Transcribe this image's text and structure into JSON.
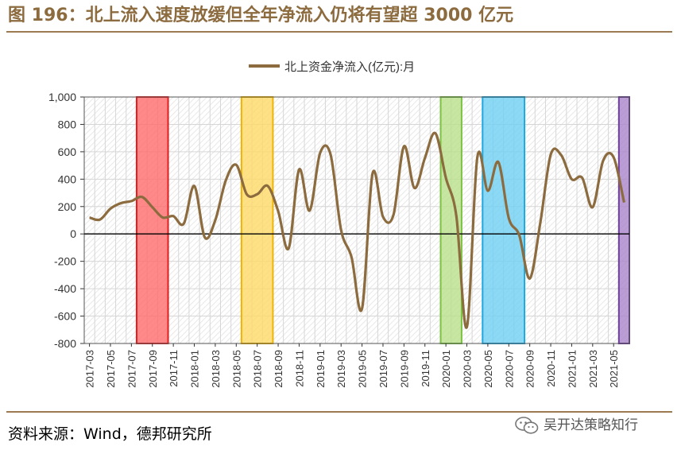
{
  "figure": {
    "title": "图 196：北上流入速度放缓但全年净流入仍将有望超 3000 亿元",
    "source": "资料来源：Wind，德邦研究所",
    "watermark": "吴开达策略知行"
  },
  "chart_data": {
    "type": "line",
    "ylim": [
      -800,
      1000
    ],
    "yticks": [
      -800,
      -600,
      -400,
      -200,
      0,
      200,
      400,
      600,
      800,
      1000
    ],
    "ytick_labels": [
      "-800",
      "-600",
      "-400",
      "-200",
      "0",
      "200",
      "400",
      "600",
      "800",
      "1,000"
    ],
    "xtick_labels": [
      "2017-03",
      "2017-05",
      "2017-07",
      "2017-09",
      "2017-11",
      "2018-01",
      "2018-03",
      "2018-05",
      "2018-07",
      "2018-09",
      "2018-11",
      "2019-01",
      "2019-03",
      "2019-05",
      "2019-07",
      "2019-09",
      "2019-11",
      "2020-01",
      "2020-03",
      "2020-05",
      "2020-07",
      "2020-09",
      "2020-11",
      "2021-01",
      "2021-03",
      "2021-05"
    ],
    "grid": true,
    "legend_position": "top-center",
    "series": [
      {
        "name": "北上资金净流入(亿元):月",
        "color": "#8c6b3f",
        "x": [
          "2017-03",
          "2017-04",
          "2017-05",
          "2017-06",
          "2017-07",
          "2017-08",
          "2017-09",
          "2017-10",
          "2017-11",
          "2017-12",
          "2018-01",
          "2018-02",
          "2018-03",
          "2018-04",
          "2018-05",
          "2018-06",
          "2018-07",
          "2018-08",
          "2018-09",
          "2018-10",
          "2018-11",
          "2018-12",
          "2019-01",
          "2019-02",
          "2019-03",
          "2019-04",
          "2019-05",
          "2019-06",
          "2019-07",
          "2019-08",
          "2019-09",
          "2019-10",
          "2019-11",
          "2019-12",
          "2020-01",
          "2020-02",
          "2020-03",
          "2020-04",
          "2020-05",
          "2020-06",
          "2020-07",
          "2020-08",
          "2020-09",
          "2020-10",
          "2020-11",
          "2020-12",
          "2021-01",
          "2021-02",
          "2021-03",
          "2021-04",
          "2021-05",
          "2021-06"
        ],
        "values": [
          120,
          105,
          185,
          225,
          240,
          270,
          195,
          120,
          130,
          75,
          350,
          -25,
          100,
          390,
          505,
          290,
          290,
          350,
          165,
          -105,
          470,
          170,
          590,
          580,
          30,
          -170,
          -545,
          440,
          125,
          140,
          640,
          335,
          555,
          735,
          410,
          130,
          -680,
          560,
          315,
          525,
          115,
          -10,
          -325,
          80,
          580,
          575,
          400,
          410,
          195,
          535,
          560,
          230
        ]
      }
    ],
    "highlight_bands": [
      {
        "from": "2017-08",
        "to": "2017-11",
        "color": "#ff6b6b",
        "border": "#e01e1e"
      },
      {
        "from": "2018-06",
        "to": "2018-09",
        "color": "#ffd966",
        "border": "#f0b400"
      },
      {
        "from": "2020-01",
        "to": "2020-03",
        "color": "#b8e08a",
        "border": "#7cc243"
      },
      {
        "from": "2020-05",
        "to": "2020-09",
        "color": "#6fd0f2",
        "border": "#1fa8e0"
      },
      {
        "from": "2021-06",
        "to": "2021-07",
        "color": "#a985c9",
        "border": "#6f3f9c"
      }
    ]
  }
}
